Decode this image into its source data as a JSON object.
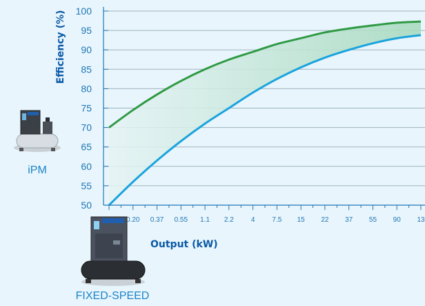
{
  "products": [
    {
      "label": "iPM",
      "icon": "ipm-compressor-icon"
    },
    {
      "label": "FIXED-SPEED",
      "icon": "fixed-speed-compressor-icon"
    }
  ],
  "colors": {
    "upper": "#2f9a44",
    "lower": "#1aa3dd",
    "fill": "#b9e2cf",
    "grid": "#9fb3bd",
    "text": "#1f77b4",
    "label": "#0a5aa6"
  },
  "chart_data": {
    "type": "area",
    "title": "",
    "xlabel": "Output (kW)",
    "ylabel": "Efficiency (%)",
    "x_tick_labels": [
      "0.12",
      "0.20",
      "0.37",
      "0.55",
      "1.1",
      "2.2",
      "4",
      "7.5",
      "15",
      "22",
      "37",
      "55",
      "90",
      "13"
    ],
    "y_ticks": [
      50,
      55,
      60,
      65,
      70,
      75,
      80,
      85,
      90,
      95,
      100
    ],
    "ylim": [
      50,
      100
    ],
    "grid": true,
    "series": [
      {
        "x": [
          "0.12",
          "0.20",
          "0.37",
          "0.55",
          "1.1",
          "2.2",
          "4",
          "7.5",
          "15",
          "22",
          "37",
          "55",
          "90",
          "13"
        ],
        "y": [
          70,
          74.5,
          78.5,
          82,
          85,
          87.5,
          89.5,
          91.5,
          93,
          94.5,
          95.5,
          96.3,
          97,
          97.3
        ]
      },
      {
        "x": [
          "0.12",
          "0.20",
          "0.37",
          "0.55",
          "1.1",
          "2.2",
          "4",
          "7.5",
          "15",
          "22",
          "37",
          "55",
          "90",
          "13"
        ],
        "y": [
          50,
          56,
          61.5,
          66.5,
          71,
          75,
          79,
          82.5,
          85.5,
          88,
          90,
          91.7,
          93,
          93.8
        ]
      }
    ]
  }
}
